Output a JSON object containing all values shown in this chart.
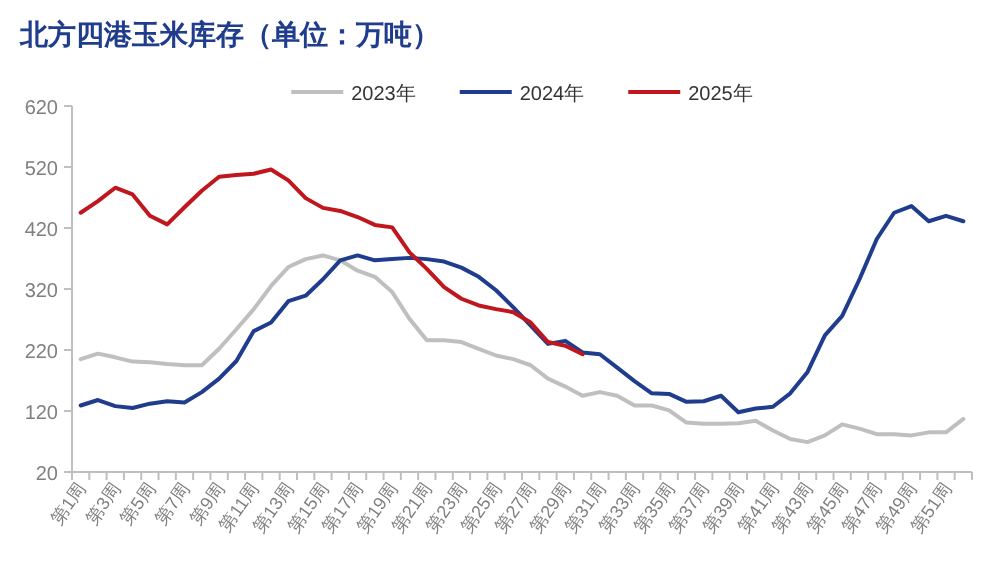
{
  "chart_data": {
    "type": "line",
    "title": "北方四港玉米库存（单位：万吨）",
    "categories": [
      "第1周",
      null,
      "第3周",
      null,
      "第5周",
      null,
      "第7周",
      null,
      "第9周",
      null,
      "第11周",
      null,
      "第13周",
      null,
      "第15周",
      null,
      "第17周",
      null,
      "第19周",
      null,
      "第21周",
      null,
      "第23周",
      null,
      "第25周",
      null,
      "第27周",
      null,
      "第29周",
      null,
      "第31周",
      null,
      "第33周",
      null,
      "第35周",
      null,
      "第37周",
      null,
      "第39周",
      null,
      "第41周",
      null,
      "第43周",
      null,
      "第45周",
      null,
      "第47周",
      null,
      "第49周",
      null,
      "第51周",
      null
    ],
    "series": [
      {
        "name": "2023年",
        "color": "#bfbfbf",
        "values": [
          205,
          214,
          208,
          201,
          200,
          197,
          195,
          195,
          222,
          254,
          287,
          325,
          356,
          369,
          375,
          367,
          350,
          340,
          315,
          271,
          236,
          236,
          233,
          222,
          211,
          205,
          195,
          173,
          160,
          145,
          151,
          145,
          129,
          129,
          121,
          101,
          99,
          99,
          100,
          104,
          88,
          74,
          69,
          80,
          98,
          91,
          82,
          82,
          80,
          85,
          85,
          107
        ]
      },
      {
        "name": "2024年",
        "color": "#1f3d8c",
        "values": [
          129,
          138,
          128,
          125,
          132,
          136,
          134,
          151,
          173,
          202,
          251,
          265,
          300,
          309,
          336,
          367,
          375,
          367,
          369,
          371,
          369,
          365,
          355,
          340,
          318,
          290,
          260,
          230,
          235,
          216,
          213,
          191,
          169,
          149,
          148,
          135,
          136,
          145,
          118,
          124,
          127,
          149,
          184,
          244,
          276,
          336,
          402,
          445,
          456,
          431,
          440,
          431
        ]
      },
      {
        "name": "2025年",
        "color": "#c0161e",
        "values": [
          445,
          464,
          486,
          475,
          440,
          426,
          454,
          481,
          504,
          507,
          509,
          516,
          498,
          469,
          453,
          448,
          438,
          425,
          421,
          380,
          353,
          323,
          304,
          293,
          287,
          282,
          265,
          233,
          227,
          213,
          null,
          null,
          null,
          null,
          null,
          null,
          null,
          null,
          null,
          null,
          null,
          null,
          null,
          null,
          null,
          null,
          null,
          null,
          null,
          null,
          null,
          null
        ]
      }
    ],
    "ylim": [
      20,
      620
    ],
    "yticks": [
      20,
      120,
      220,
      320,
      420,
      520,
      620
    ],
    "legend": "top",
    "marker": "none",
    "line_style": "solid"
  }
}
